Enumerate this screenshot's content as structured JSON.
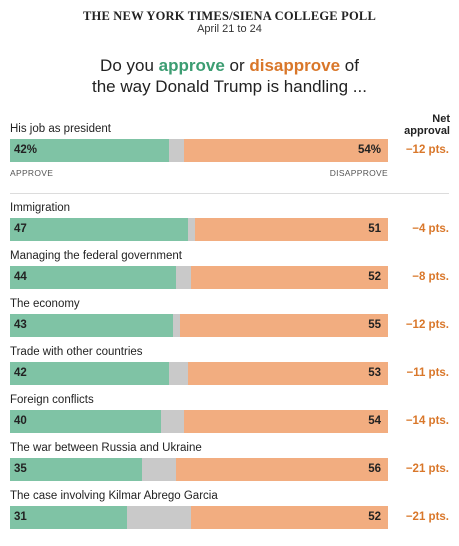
{
  "header": {
    "poll_title": "THE NEW YORK TIMES/SIENA COLLEGE POLL",
    "date": "April 21 to 24",
    "question_part1": "Do you ",
    "question_approve": "approve",
    "question_or": " or ",
    "question_disapprove": "disapprove",
    "question_of": " of",
    "question_line2": "the way Donald Trump is handling ..."
  },
  "colors": {
    "approve": "#7fc3a5",
    "neutral": "#c9c9c9",
    "disapprove": "#f2ad80",
    "approve_text": "#3c9d72",
    "net_text": "#d9772a"
  },
  "chart_data": {
    "type": "bar",
    "orientation": "horizontal-stacked",
    "title": "Do you approve or disapprove of the way Donald Trump is handling ...",
    "net_header": "Net approval",
    "legend": {
      "approve": "APPROVE",
      "disapprove": "DISAPPROVE"
    },
    "rows": [
      {
        "label": "His job as president",
        "approve": 42,
        "disapprove": 54,
        "approve_label": "42%",
        "disapprove_label": "54%",
        "net_label": "−12 pts."
      },
      {
        "label": "Immigration",
        "approve": 47,
        "disapprove": 51,
        "approve_label": "47",
        "disapprove_label": "51",
        "net_label": "−4 pts."
      },
      {
        "label": "Managing the federal government",
        "approve": 44,
        "disapprove": 52,
        "approve_label": "44",
        "disapprove_label": "52",
        "net_label": "−8 pts."
      },
      {
        "label": "The economy",
        "approve": 43,
        "disapprove": 55,
        "approve_label": "43",
        "disapprove_label": "55",
        "net_label": "−12 pts."
      },
      {
        "label": "Trade with other countries",
        "approve": 42,
        "disapprove": 53,
        "approve_label": "42",
        "disapprove_label": "53",
        "net_label": "−11 pts."
      },
      {
        "label": "Foreign conflicts",
        "approve": 40,
        "disapprove": 54,
        "approve_label": "40",
        "disapprove_label": "54",
        "net_label": "−14 pts."
      },
      {
        "label": "The war between Russia and Ukraine",
        "approve": 35,
        "disapprove": 56,
        "approve_label": "35",
        "disapprove_label": "56",
        "net_label": "−21 pts."
      },
      {
        "label": "The case involving Kilmar Abrego Garcia",
        "approve": 31,
        "disapprove": 52,
        "approve_label": "31",
        "disapprove_label": "52",
        "net_label": "−21 pts."
      }
    ]
  }
}
